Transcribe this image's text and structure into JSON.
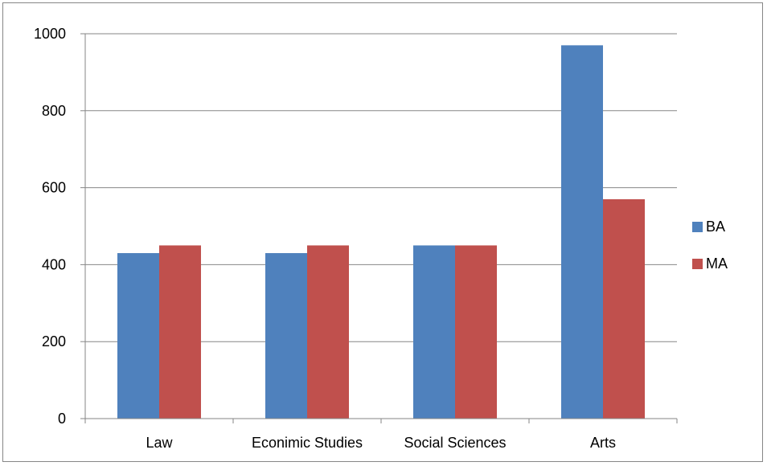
{
  "chart_data": {
    "type": "bar",
    "title": "",
    "xlabel": "",
    "ylabel": "",
    "categories": [
      "Law",
      "Econimic Studies",
      "Social Sciences",
      "Arts"
    ],
    "series": [
      {
        "name": "BA",
        "color": "#4F81BD",
        "values": [
          430,
          430,
          450,
          970
        ]
      },
      {
        "name": "MA",
        "color": "#C0504D",
        "values": [
          450,
          450,
          450,
          570
        ]
      }
    ],
    "ylim": [
      0,
      1000
    ],
    "yticks": [
      0,
      200,
      400,
      600,
      800,
      1000
    ],
    "grid": true,
    "legend_position": "right"
  }
}
